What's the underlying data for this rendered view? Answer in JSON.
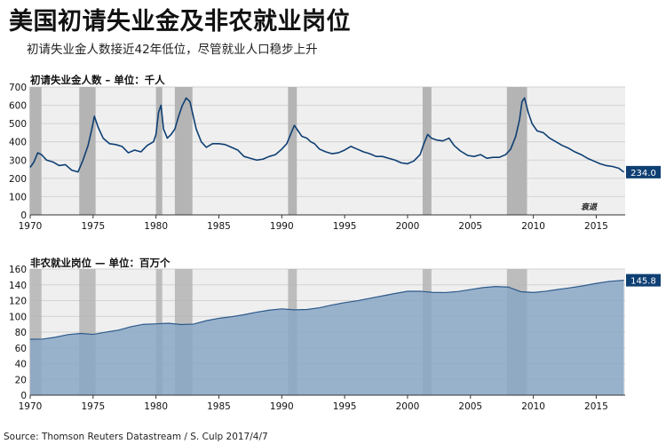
{
  "title": "美国初请失业金及非农就业岗位",
  "subtitle": "初请失业金人数接近42年低位，尽管就业人口稳步上升",
  "source": "Source: Thomson Reuters Datastream / S. Culp 2017/4/7",
  "colors": {
    "line": "#0e3f73",
    "area": "#8aa7c4",
    "area_edge": "#2c5a8c",
    "recession": "#b4b4b4",
    "plot_bg": "#efefef",
    "tag_bg": "#0e3f73"
  },
  "chart_data": [
    {
      "type": "line",
      "title": "初请失业金人数 – 单位：千人",
      "xlabel": "",
      "ylabel": "",
      "xlim": [
        1970,
        2017.3
      ],
      "ylim": [
        0,
        700
      ],
      "yticks": [
        0,
        100,
        200,
        300,
        400,
        500,
        600,
        700
      ],
      "xticks": [
        1970,
        1975,
        1980,
        1985,
        1990,
        1995,
        2000,
        2005,
        2010,
        2015
      ],
      "last_value_label": "234.0",
      "annotation": "衰退",
      "recessions": [
        [
          1969.95,
          1970.9
        ],
        [
          1973.9,
          1975.2
        ],
        [
          1980.0,
          1980.5
        ],
        [
          1981.5,
          1982.9
        ],
        [
          1990.5,
          1991.2
        ],
        [
          2001.2,
          2001.9
        ],
        [
          2007.9,
          2009.5
        ]
      ],
      "series": [
        {
          "x": [
            1970.0,
            1970.3,
            1970.6,
            1970.9,
            1971.3,
            1971.8,
            1972.3,
            1972.8,
            1973.3,
            1973.8,
            1974.2,
            1974.6,
            1974.9,
            1975.1,
            1975.4,
            1975.8,
            1976.3,
            1976.8,
            1977.3,
            1977.8,
            1978.3,
            1978.8,
            1979.3,
            1979.8,
            1980.0,
            1980.2,
            1980.4,
            1980.6,
            1980.9,
            1981.2,
            1981.5,
            1981.8,
            1982.1,
            1982.4,
            1982.7,
            1982.9,
            1983.2,
            1983.6,
            1984.0,
            1984.5,
            1985.0,
            1985.5,
            1986.0,
            1986.5,
            1987.0,
            1987.5,
            1988.0,
            1988.5,
            1989.0,
            1989.5,
            1990.0,
            1990.4,
            1990.7,
            1991.0,
            1991.3,
            1991.6,
            1992.0,
            1992.3,
            1992.6,
            1993.0,
            1993.5,
            1994.0,
            1994.5,
            1995.0,
            1995.5,
            1996.0,
            1996.5,
            1997.0,
            1997.5,
            1998.0,
            1998.5,
            1999.0,
            1999.5,
            2000.0,
            2000.5,
            2001.0,
            2001.3,
            2001.6,
            2001.9,
            2002.3,
            2002.8,
            2003.3,
            2003.7,
            2004.2,
            2004.8,
            2005.3,
            2005.8,
            2006.3,
            2006.8,
            2007.3,
            2007.8,
            2008.2,
            2008.6,
            2008.9,
            2009.1,
            2009.3,
            2009.6,
            2009.9,
            2010.3,
            2010.8,
            2011.3,
            2011.8,
            2012.3,
            2012.8,
            2013.3,
            2013.8,
            2014.3,
            2014.8,
            2015.3,
            2015.8,
            2016.3,
            2016.8,
            2017.2
          ],
          "values": [
            260,
            290,
            340,
            330,
            300,
            290,
            270,
            275,
            245,
            235,
            300,
            380,
            470,
            540,
            480,
            420,
            390,
            385,
            375,
            340,
            355,
            345,
            380,
            400,
            440,
            560,
            600,
            470,
            420,
            440,
            470,
            540,
            600,
            640,
            620,
            560,
            470,
            400,
            370,
            390,
            390,
            385,
            370,
            355,
            320,
            310,
            300,
            305,
            320,
            330,
            360,
            390,
            440,
            490,
            460,
            430,
            420,
            400,
            390,
            360,
            345,
            335,
            340,
            355,
            375,
            360,
            345,
            335,
            320,
            320,
            310,
            300,
            285,
            280,
            295,
            330,
            390,
            440,
            420,
            410,
            405,
            420,
            380,
            350,
            325,
            320,
            330,
            310,
            315,
            315,
            330,
            360,
            430,
            520,
            620,
            640,
            560,
            500,
            460,
            450,
            420,
            400,
            380,
            365,
            345,
            330,
            310,
            295,
            280,
            270,
            265,
            255,
            234
          ]
        }
      ]
    },
    {
      "type": "area",
      "title": "非农就业岗位 — 单位：百万个",
      "xlabel": "",
      "ylabel": "",
      "xlim": [
        1970,
        2017.3
      ],
      "ylim": [
        0,
        160
      ],
      "yticks": [
        0,
        20,
        40,
        60,
        80,
        100,
        120,
        140,
        160
      ],
      "xticks": [
        1970,
        1975,
        1980,
        1985,
        1990,
        1995,
        2000,
        2005,
        2010,
        2015
      ],
      "last_value_label": "145.8",
      "recessions": [
        [
          1969.95,
          1970.9
        ],
        [
          1973.9,
          1975.2
        ],
        [
          1980.0,
          1980.5
        ],
        [
          1981.5,
          1982.9
        ],
        [
          1990.5,
          1991.2
        ],
        [
          2001.2,
          2001.9
        ],
        [
          2007.9,
          2009.5
        ]
      ],
      "series": [
        {
          "x": [
            1970,
            1971,
            1972,
            1973,
            1974,
            1975,
            1976,
            1977,
            1978,
            1979,
            1980,
            1981,
            1982,
            1983,
            1984,
            1985,
            1986,
            1987,
            1988,
            1989,
            1990,
            1991,
            1992,
            1993,
            1994,
            1995,
            1996,
            1997,
            1998,
            1999,
            2000,
            2001,
            2002,
            2003,
            2004,
            2005,
            2006,
            2007,
            2008,
            2009,
            2010,
            2011,
            2012,
            2013,
            2014,
            2015,
            2016,
            2017.2
          ],
          "values": [
            71,
            71.2,
            73.5,
            76.8,
            78.3,
            77.1,
            79.9,
            82.5,
            86.8,
            89.9,
            90.5,
            91.3,
            89.6,
            90.2,
            94.5,
            97.5,
            99.5,
            102.1,
            105.3,
            107.9,
            109.5,
            108.3,
            108.7,
            110.9,
            114.4,
            117.4,
            119.8,
            122.9,
            125.9,
            129.0,
            131.8,
            131.9,
            130.4,
            130.2,
            131.5,
            134.0,
            136.5,
            137.9,
            137.2,
            131.3,
            130.3,
            131.9,
            134.2,
            136.4,
            138.9,
            141.8,
            144.3,
            145.8
          ]
        }
      ]
    }
  ]
}
